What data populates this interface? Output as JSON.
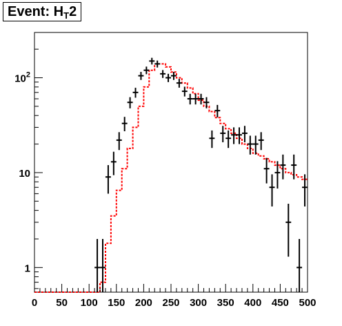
{
  "title": {
    "main": "Event: H",
    "sub": "T",
    "suffix": "2"
  },
  "chart_data": {
    "type": "scatter",
    "title": "Event: H_T2",
    "xlabel": "",
    "ylabel": "",
    "xlim": [
      0,
      500
    ],
    "ylim": [
      0.55,
      300
    ],
    "yscale": "log",
    "grid": false,
    "x_ticks": [
      0,
      50,
      100,
      150,
      200,
      250,
      300,
      350,
      400,
      450,
      500
    ],
    "x_tick_labels": [
      "0",
      "50",
      "100",
      "150",
      "200",
      "250",
      "300",
      "350",
      "400",
      "450",
      "500"
    ],
    "y_ticks": [
      1,
      10,
      100
    ],
    "y_tick_labels": [
      {
        "base": "1",
        "exp": ""
      },
      {
        "base": "10",
        "exp": ""
      },
      {
        "base": "10",
        "exp": "2"
      }
    ],
    "bin_width": 10,
    "series": [
      {
        "kind": "histogram",
        "style": "dashed",
        "color": "#ff0000",
        "bin_edges": [
          0,
          10,
          20,
          30,
          40,
          50,
          60,
          70,
          80,
          90,
          100,
          110,
          120,
          130,
          140,
          150,
          160,
          170,
          180,
          190,
          200,
          210,
          220,
          230,
          240,
          250,
          260,
          270,
          280,
          290,
          300,
          310,
          320,
          330,
          340,
          350,
          360,
          370,
          380,
          390,
          400,
          410,
          420,
          430,
          440,
          450,
          460,
          470,
          480,
          490,
          500
        ],
        "values": [
          0.5,
          0.5,
          0.5,
          0.5,
          0.5,
          0.5,
          0.5,
          0.5,
          0.5,
          0.5,
          0.5,
          0.5,
          0.7,
          1.8,
          3.5,
          6.5,
          11,
          18,
          30,
          50,
          80,
          120,
          140,
          140,
          130,
          115,
          100,
          88,
          78,
          68,
          58,
          50,
          44,
          38,
          33,
          29,
          26,
          23,
          20,
          18,
          16,
          15,
          14,
          13,
          12,
          11,
          10,
          9.5,
          9,
          8.5
        ]
      },
      {
        "kind": "points",
        "color": "#000000",
        "x": [
          115,
          125,
          135,
          145,
          155,
          165,
          175,
          185,
          195,
          205,
          215,
          225,
          235,
          245,
          255,
          265,
          275,
          285,
          295,
          305,
          315,
          325,
          335,
          345,
          355,
          365,
          375,
          385,
          395,
          405,
          415,
          425,
          435,
          445,
          455,
          465,
          475,
          485,
          495
        ],
        "y": [
          1,
          1,
          9,
          13,
          22,
          33,
          55,
          70,
          105,
          120,
          150,
          140,
          110,
          100,
          105,
          88,
          72,
          60,
          60,
          60,
          55,
          23,
          45,
          26,
          23,
          25,
          25,
          26,
          20,
          20,
          22,
          11,
          7,
          10,
          12,
          3,
          12,
          1,
          7
        ],
        "err": [
          1,
          1,
          3,
          3.6,
          4.7,
          5.7,
          7.4,
          8.4,
          10.2,
          11,
          12.2,
          11.8,
          10.5,
          10,
          10.2,
          9.4,
          8.5,
          7.7,
          7.7,
          7.7,
          7.4,
          4.8,
          6.7,
          5.1,
          4.8,
          5,
          5,
          5.1,
          4.5,
          4.5,
          4.7,
          3.3,
          2.6,
          3.2,
          3.5,
          1.7,
          3.5,
          1,
          2.6
        ]
      }
    ]
  }
}
